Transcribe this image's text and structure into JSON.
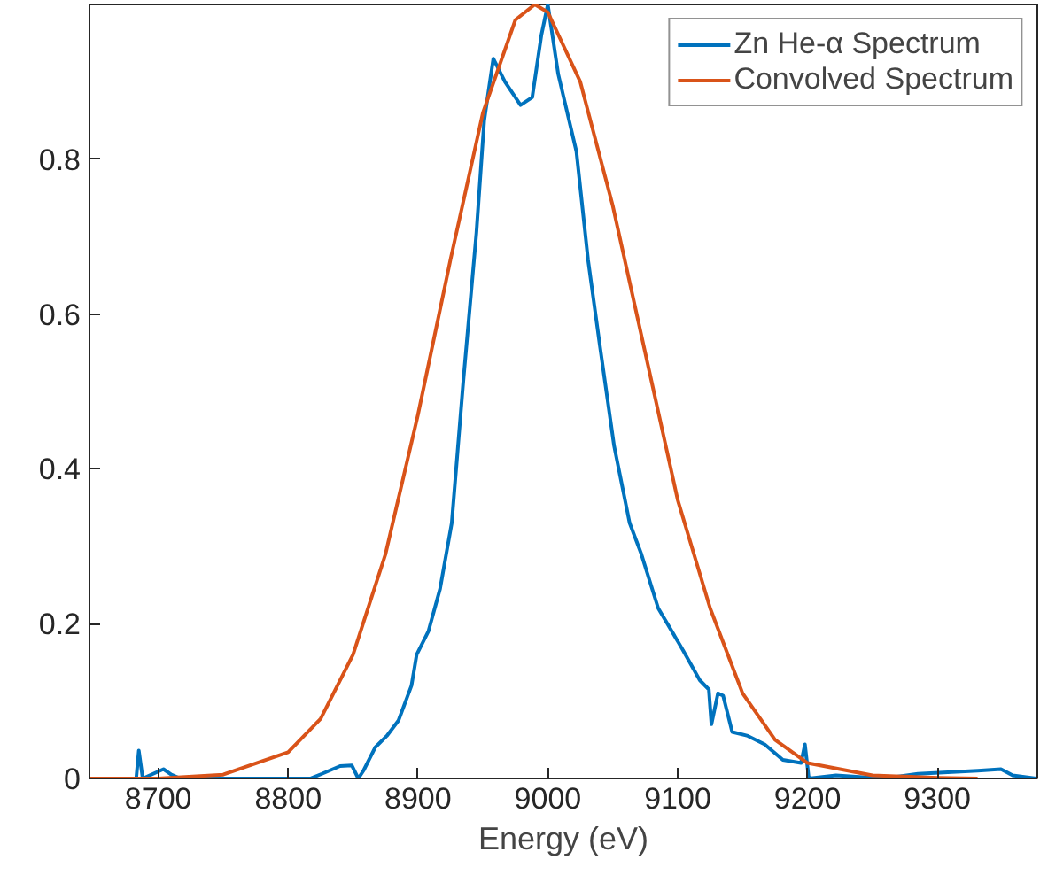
{
  "chart_data": {
    "type": "line",
    "xlabel": "Energy (eV)",
    "xlim": [
      8647,
      9377
    ],
    "ylim": [
      0,
      1
    ],
    "xticks": [
      8700,
      8800,
      8900,
      9000,
      9100,
      9200,
      9300
    ],
    "yticks": [
      0,
      0.2,
      0.4,
      0.6,
      0.8
    ],
    "grid": false,
    "legend": "top right",
    "series": [
      {
        "name": "Zn He-α Spectrum",
        "color": "#0072bd",
        "x": [
          8674,
          8683,
          8685,
          8688,
          8704,
          8710,
          8717,
          8740,
          8817,
          8826,
          8840,
          8849,
          8854,
          8858,
          8867,
          8876,
          8885,
          8895,
          8899,
          8908,
          8917,
          8926,
          8935,
          8945,
          8951,
          8958,
          8967,
          8979,
          8988,
          8995,
          9000,
          9008,
          9022,
          9031,
          9040,
          9051,
          9063,
          9072,
          9085,
          9104,
          9117,
          9124,
          9126,
          9131,
          9135,
          9142,
          9154,
          9167,
          9181,
          9195,
          9198,
          9201,
          9222,
          9258,
          9285,
          9331,
          9349,
          9358,
          9376
        ],
        "values": [
          0,
          0,
          0.036,
          0,
          0.012,
          0.005,
          0,
          0,
          0,
          0.006,
          0.016,
          0.017,
          0,
          0.01,
          0.04,
          0.055,
          0.075,
          0.12,
          0.16,
          0.19,
          0.245,
          0.33,
          0.515,
          0.705,
          0.85,
          0.93,
          0.9,
          0.87,
          0.88,
          0.96,
          1.0,
          0.91,
          0.81,
          0.67,
          0.56,
          0.43,
          0.33,
          0.29,
          0.22,
          0.166,
          0.127,
          0.115,
          0.07,
          0.11,
          0.107,
          0.06,
          0.055,
          0.044,
          0.024,
          0.02,
          0.044,
          0,
          0.004,
          0,
          0.006,
          0.01,
          0.012,
          0.004,
          0
        ]
      },
      {
        "name": "Convolved Spectrum",
        "color": "#d95319",
        "x": [
          8647,
          8700,
          8750,
          8800,
          8825,
          8850,
          8875,
          8900,
          8925,
          8950,
          8975,
          8990,
          9000,
          9025,
          9050,
          9075,
          9100,
          9125,
          9150,
          9175,
          9200,
          9250,
          9300,
          9331
        ],
        "values": [
          0,
          0,
          0.005,
          0.034,
          0.077,
          0.16,
          0.29,
          0.47,
          0.67,
          0.86,
          0.98,
          1.0,
          0.99,
          0.9,
          0.74,
          0.55,
          0.36,
          0.22,
          0.11,
          0.05,
          0.02,
          0.004,
          0.001,
          0
        ]
      }
    ]
  }
}
